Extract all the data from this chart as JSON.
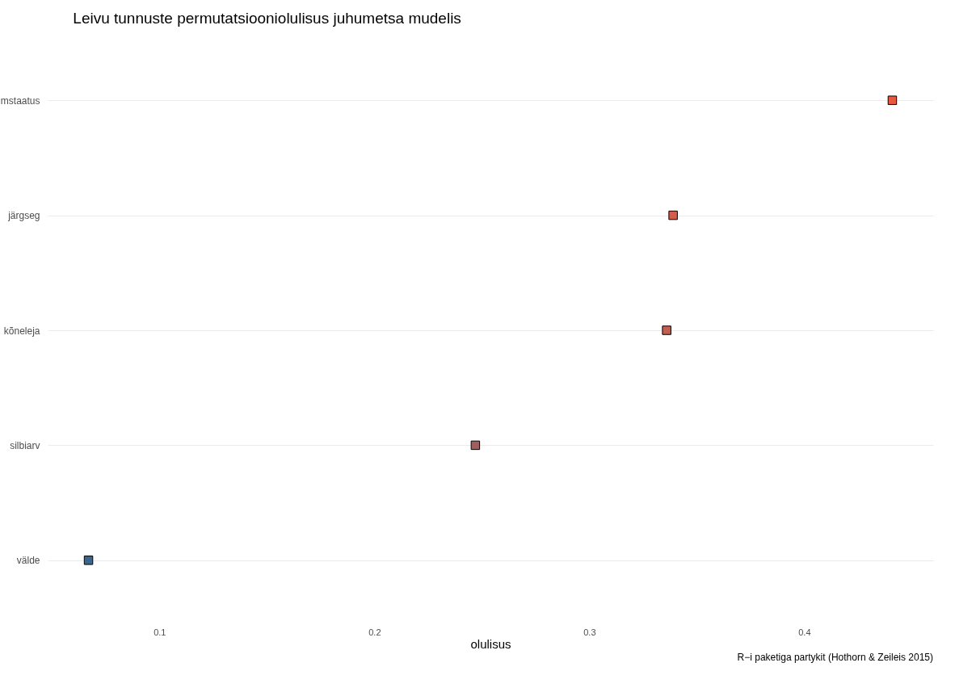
{
  "chart_data": {
    "type": "scatter",
    "title": "Leivu tunnuste permutatsiooniolulisus juhumetsa mudelis",
    "xlabel": "olulisus",
    "categories": [
      "mstaatus",
      "järgseg",
      "kõneleja",
      "silbiarv",
      "välde"
    ],
    "values": [
      0.441,
      0.339,
      0.336,
      0.247,
      0.067
    ],
    "colors": [
      "#e8583e",
      "#d45d4b",
      "#c65e50",
      "#a05f5f",
      "#3a6791"
    ],
    "xlim": [
      0.048,
      0.46
    ],
    "xticks": [
      0.1,
      0.2,
      0.3,
      0.4
    ],
    "orientation": "horizontal",
    "grid": "y",
    "marker": "square",
    "annotations": [
      "R−i paketiga partykit (Hothorn & Zeileis 2015)"
    ]
  }
}
